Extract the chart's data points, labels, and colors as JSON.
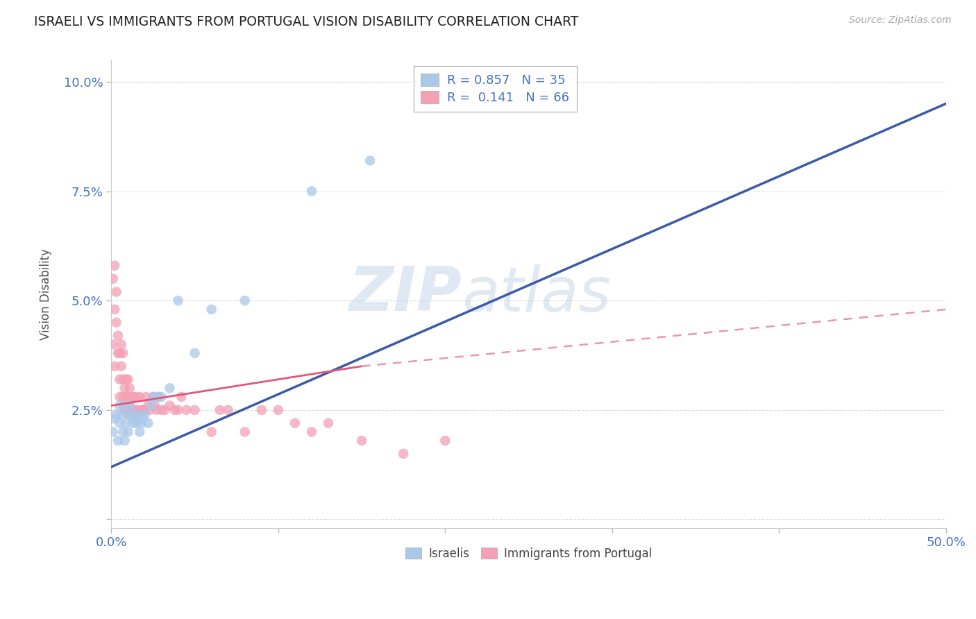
{
  "title": "ISRAELI VS IMMIGRANTS FROM PORTUGAL VISION DISABILITY CORRELATION CHART",
  "source": "Source: ZipAtlas.com",
  "ylabel": "Vision Disability",
  "xlim": [
    0.0,
    0.5
  ],
  "ylim": [
    -0.002,
    0.105
  ],
  "color_israeli": "#aac8e8",
  "color_portugal": "#f4a0b5",
  "trendline_israeli_color": "#3a5aab",
  "trendline_portugal_solid_color": "#e05878",
  "trendline_portugal_dash_color": "#e898a8",
  "watermark_zip": "ZIP",
  "watermark_atlas": "atlas",
  "background_color": "#ffffff",
  "grid_color": "#dddddd",
  "israelis_x": [
    0.001,
    0.002,
    0.003,
    0.004,
    0.005,
    0.005,
    0.006,
    0.007,
    0.007,
    0.008,
    0.009,
    0.01,
    0.01,
    0.011,
    0.012,
    0.013,
    0.014,
    0.015,
    0.016,
    0.017,
    0.018,
    0.019,
    0.02,
    0.022,
    0.024,
    0.025,
    0.028,
    0.03,
    0.035,
    0.04,
    0.05,
    0.06,
    0.08,
    0.12,
    0.155
  ],
  "israelis_y": [
    0.02,
    0.023,
    0.024,
    0.018,
    0.022,
    0.026,
    0.024,
    0.02,
    0.026,
    0.018,
    0.022,
    0.02,
    0.024,
    0.026,
    0.024,
    0.022,
    0.023,
    0.022,
    0.024,
    0.02,
    0.022,
    0.023,
    0.024,
    0.022,
    0.026,
    0.028,
    0.028,
    0.028,
    0.03,
    0.05,
    0.038,
    0.048,
    0.05,
    0.075,
    0.082
  ],
  "portugal_x": [
    0.001,
    0.001,
    0.002,
    0.002,
    0.002,
    0.003,
    0.003,
    0.004,
    0.004,
    0.005,
    0.005,
    0.005,
    0.006,
    0.006,
    0.007,
    0.007,
    0.007,
    0.008,
    0.008,
    0.009,
    0.009,
    0.009,
    0.01,
    0.01,
    0.01,
    0.011,
    0.011,
    0.012,
    0.012,
    0.013,
    0.013,
    0.014,
    0.015,
    0.015,
    0.016,
    0.017,
    0.018,
    0.019,
    0.02,
    0.021,
    0.022,
    0.023,
    0.025,
    0.026,
    0.027,
    0.028,
    0.03,
    0.032,
    0.035,
    0.038,
    0.04,
    0.042,
    0.045,
    0.05,
    0.06,
    0.065,
    0.07,
    0.08,
    0.09,
    0.1,
    0.11,
    0.12,
    0.13,
    0.15,
    0.175,
    0.2
  ],
  "portugal_y": [
    0.04,
    0.055,
    0.048,
    0.058,
    0.035,
    0.045,
    0.052,
    0.038,
    0.042,
    0.032,
    0.038,
    0.028,
    0.035,
    0.04,
    0.028,
    0.032,
    0.038,
    0.025,
    0.03,
    0.025,
    0.028,
    0.032,
    0.024,
    0.028,
    0.032,
    0.026,
    0.03,
    0.024,
    0.028,
    0.025,
    0.028,
    0.024,
    0.025,
    0.028,
    0.025,
    0.028,
    0.025,
    0.025,
    0.025,
    0.028,
    0.026,
    0.025,
    0.028,
    0.026,
    0.025,
    0.028,
    0.025,
    0.025,
    0.026,
    0.025,
    0.025,
    0.028,
    0.025,
    0.025,
    0.02,
    0.025,
    0.025,
    0.02,
    0.025,
    0.025,
    0.022,
    0.02,
    0.022,
    0.018,
    0.015,
    0.018
  ],
  "trendline_i_x0": 0.0,
  "trendline_i_y0": 0.012,
  "trendline_i_x1": 0.5,
  "trendline_i_y1": 0.095,
  "trendline_p_solid_x0": 0.0,
  "trendline_p_solid_y0": 0.026,
  "trendline_p_solid_x1": 0.15,
  "trendline_p_solid_y1": 0.035,
  "trendline_p_dash_x0": 0.15,
  "trendline_p_dash_y0": 0.035,
  "trendline_p_dash_x1": 0.5,
  "trendline_p_dash_y1": 0.048
}
